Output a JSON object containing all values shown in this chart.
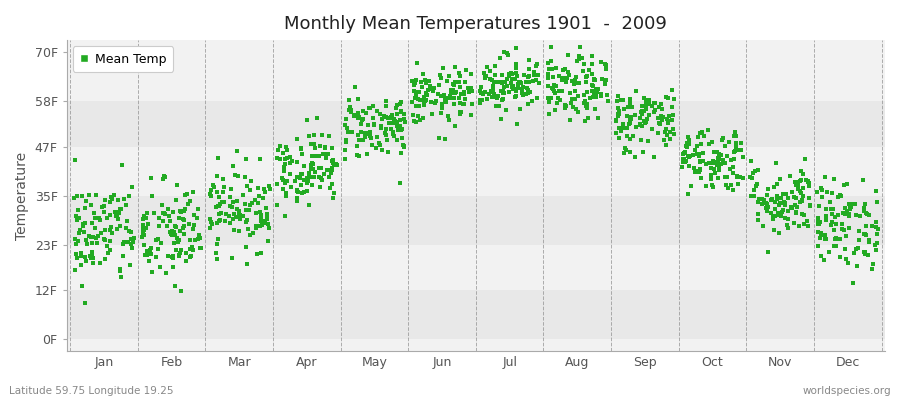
{
  "title": "Monthly Mean Temperatures 1901  -  2009",
  "ylabel": "Temperature",
  "footnote_left": "Latitude 59.75 Longitude 19.25",
  "footnote_right": "worldspecies.org",
  "dot_color": "#22aa22",
  "background_color": "#ffffff",
  "plot_bg_light": "#f2f2f2",
  "plot_bg_dark": "#e8e8e8",
  "legend_label": "Mean Temp",
  "ytick_labels": [
    "0F",
    "12F",
    "23F",
    "35F",
    "47F",
    "58F",
    "70F"
  ],
  "ytick_values": [
    0,
    12,
    23,
    35,
    47,
    58,
    70
  ],
  "ylim": [
    -3,
    73
  ],
  "months": [
    "Jan",
    "Feb",
    "Mar",
    "Apr",
    "May",
    "Jun",
    "Jul",
    "Aug",
    "Sep",
    "Oct",
    "Nov",
    "Dec"
  ],
  "n_years": 109,
  "monthly_mean_f": [
    26.0,
    25.5,
    32.0,
    42.0,
    52.0,
    59.0,
    62.5,
    61.0,
    53.5,
    44.0,
    34.0,
    28.0
  ],
  "monthly_std_f": [
    6.5,
    6.5,
    5.0,
    4.5,
    4.0,
    3.5,
    3.5,
    4.0,
    4.0,
    4.0,
    4.5,
    5.5
  ],
  "seed": 42
}
